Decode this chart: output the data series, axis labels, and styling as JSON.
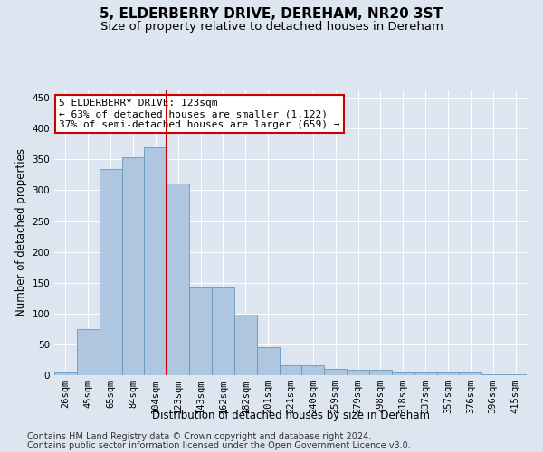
{
  "title1": "5, ELDERBERRY DRIVE, DEREHAM, NR20 3ST",
  "title2": "Size of property relative to detached houses in Dereham",
  "xlabel": "Distribution of detached houses by size in Dereham",
  "ylabel": "Number of detached properties",
  "categories": [
    "26sqm",
    "45sqm",
    "65sqm",
    "84sqm",
    "104sqm",
    "123sqm",
    "143sqm",
    "162sqm",
    "182sqm",
    "201sqm",
    "221sqm",
    "240sqm",
    "259sqm",
    "279sqm",
    "298sqm",
    "318sqm",
    "337sqm",
    "357sqm",
    "376sqm",
    "396sqm",
    "415sqm"
  ],
  "values": [
    5,
    75,
    334,
    354,
    369,
    311,
    142,
    142,
    99,
    46,
    16,
    16,
    11,
    9,
    9,
    4,
    5,
    4,
    4,
    1,
    2
  ],
  "bar_color": "#aec6e0",
  "bar_edge_color": "#6699bb",
  "vline_color": "#cc0000",
  "vline_index": 5,
  "annotation_line1": "5 ELDERBERRY DRIVE: 123sqm",
  "annotation_line2": "← 63% of detached houses are smaller (1,122)",
  "annotation_line3": "37% of semi-detached houses are larger (659) →",
  "annotation_box_color": "#cc0000",
  "annotation_fill": "white",
  "ylim": [
    0,
    462
  ],
  "yticks": [
    0,
    50,
    100,
    150,
    200,
    250,
    300,
    350,
    400,
    450
  ],
  "footer1": "Contains HM Land Registry data © Crown copyright and database right 2024.",
  "footer2": "Contains public sector information licensed under the Open Government Licence v3.0.",
  "background_color": "#dde6f0",
  "plot_background": "#dde6f0",
  "title1_fontsize": 11,
  "title2_fontsize": 9.5,
  "axis_label_fontsize": 8.5,
  "tick_fontsize": 7.5,
  "annotation_fontsize": 8,
  "footer_fontsize": 7
}
